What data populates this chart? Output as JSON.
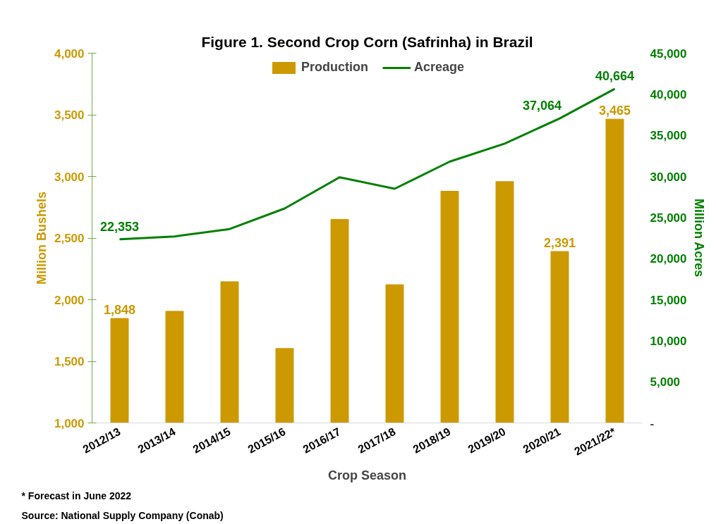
{
  "chart_data": {
    "type": "bar",
    "title": "Figure 1. Second Crop Corn (Safrinha) in Brazil",
    "xlabel": "Crop Season",
    "ylabel": "Million Bushels",
    "y2label": "Million Acres",
    "categories": [
      "2012/13",
      "2013/14",
      "2014/15",
      "2015/16",
      "2016/17",
      "2017/18",
      "2018/19",
      "2019/20",
      "2020/21",
      "2021/22*"
    ],
    "series": [
      {
        "name": "Production",
        "color": "#cc9900",
        "values": [
          1848,
          1906,
          2146,
          1604,
          2652,
          2122,
          2880,
          2958,
          2391,
          3465
        ],
        "value_labels": [
          "1,848",
          null,
          null,
          null,
          null,
          null,
          null,
          null,
          "2,391",
          "3,465"
        ]
      },
      {
        "name": "Acreage",
        "type": "line",
        "axis": "y2",
        "color": "#008000",
        "values": [
          22353,
          22700,
          23600,
          26100,
          29900,
          28500,
          31800,
          34000,
          37064,
          40664
        ],
        "value_labels": [
          "22,353",
          null,
          null,
          null,
          null,
          null,
          null,
          null,
          "37,064",
          "40,664"
        ]
      }
    ],
    "ylim": [
      1000,
      4000
    ],
    "yticks": [
      {
        "value": 1000,
        "label": "1,000"
      },
      {
        "value": 1500,
        "label": "1,500"
      },
      {
        "value": 2000,
        "label": "2,000"
      },
      {
        "value": 2500,
        "label": "2,500"
      },
      {
        "value": 3000,
        "label": "3,000"
      },
      {
        "value": 3500,
        "label": "3,500"
      },
      {
        "value": 4000,
        "label": "4,000"
      }
    ],
    "y2lim": [
      0,
      45000
    ],
    "y2ticks": [
      {
        "value": 0,
        "label": "-"
      },
      {
        "value": 5000,
        "label": "5,000"
      },
      {
        "value": 10000,
        "label": "10,000"
      },
      {
        "value": 15000,
        "label": "15,000"
      },
      {
        "value": 20000,
        "label": "20,000"
      },
      {
        "value": 25000,
        "label": "25,000"
      },
      {
        "value": 30000,
        "label": "30,000"
      },
      {
        "value": 35000,
        "label": "35,000"
      },
      {
        "value": 40000,
        "label": "40,000"
      },
      {
        "value": 45000,
        "label": "45,000"
      }
    ],
    "grid": false,
    "legend": "top",
    "marker": "none",
    "line_style": "solid",
    "annotations": [
      "* Forecast in June 2022",
      "Source: National Supply Company (Conab)"
    ]
  }
}
